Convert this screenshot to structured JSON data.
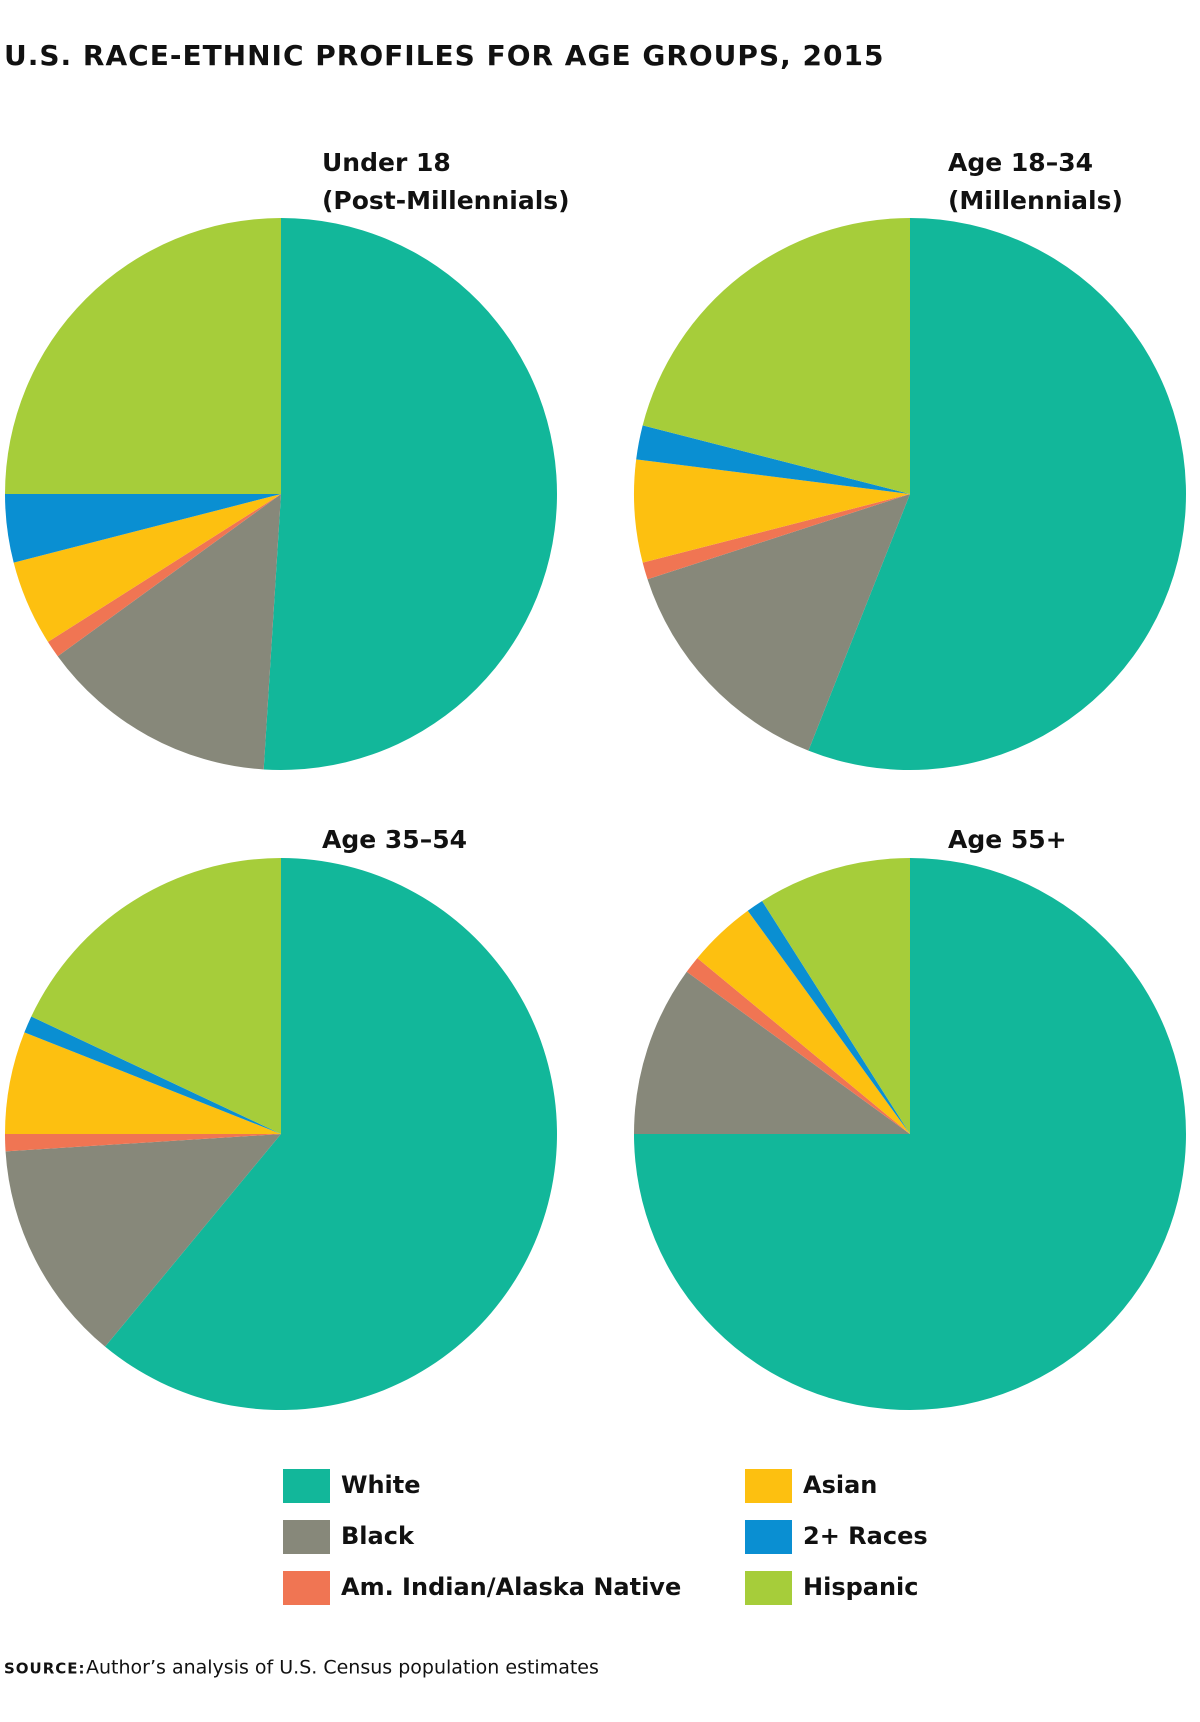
{
  "title": "U.S. RACE-ETHNIC PROFILES FOR AGE GROUPS, 2015",
  "source_label": "SOURCE:",
  "source": "Author’s analysis of U.S. Census population estimates",
  "chart_data": [
    {
      "type": "pie",
      "title": "Under 18",
      "subtitle": "(Post-Millennials)",
      "categories": [
        "White",
        "Black",
        "Am. Indian/Alaska Native",
        "Asian",
        "2+ Races",
        "Hispanic"
      ],
      "colors": [
        "#12b79a",
        "#87887a",
        "#f07553",
        "#fdc010",
        "#0a8fd2",
        "#a6cd3a"
      ],
      "values": [
        51,
        14,
        1,
        5,
        4,
        25
      ]
    },
    {
      "type": "pie",
      "title": "Age 18–34",
      "subtitle": "(Millennials)",
      "categories": [
        "White",
        "Black",
        "Am. Indian/Alaska Native",
        "Asian",
        "2+ Races",
        "Hispanic"
      ],
      "colors": [
        "#12b79a",
        "#87887a",
        "#f07553",
        "#fdc010",
        "#0a8fd2",
        "#a6cd3a"
      ],
      "values": [
        56,
        14,
        1,
        6,
        2,
        21
      ]
    },
    {
      "type": "pie",
      "title": "Age 35–54",
      "categories": [
        "White",
        "Black",
        "Am. Indian/Alaska Native",
        "Asian",
        "2+ Races",
        "Hispanic"
      ],
      "colors": [
        "#12b79a",
        "#87887a",
        "#f07553",
        "#fdc010",
        "#0a8fd2",
        "#a6cd3a"
      ],
      "values": [
        61,
        13,
        1,
        6,
        1,
        18
      ]
    },
    {
      "type": "pie",
      "title": "Age 55+",
      "categories": [
        "White",
        "Black",
        "Am. Indian/Alaska Native",
        "Asian",
        "2+ Races",
        "Hispanic"
      ],
      "colors": [
        "#12b79a",
        "#87887a",
        "#f07553",
        "#fdc010",
        "#0a8fd2",
        "#a6cd3a"
      ],
      "values": [
        75,
        10,
        1,
        4,
        1,
        9
      ]
    }
  ]
}
